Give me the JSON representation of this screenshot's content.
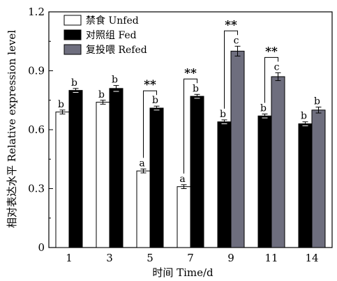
{
  "chart_data": {
    "type": "bar",
    "x_title": "时间 Time/d",
    "y_title": "相对表达水平 Relative expression level",
    "categories": [
      "1",
      "3",
      "5",
      "7",
      "9",
      "11",
      "14"
    ],
    "ylim": [
      0,
      1.2
    ],
    "yticks": [
      "0",
      "0.3",
      "0.6",
      "0.9",
      "1.2"
    ],
    "legend_position": "top-left",
    "series": [
      {
        "name": "禁食 Unfed",
        "color": "#ffffff",
        "values": [
          0.69,
          0.74,
          0.39,
          0.31,
          null,
          null,
          null
        ],
        "errors": [
          0.01,
          0.01,
          0.01,
          0.01,
          null,
          null,
          null
        ],
        "letters": [
          "b",
          "b",
          "a",
          "a",
          null,
          null,
          null
        ]
      },
      {
        "name": "对照组 Fed",
        "color": "#000000",
        "values": [
          0.8,
          0.81,
          0.71,
          0.77,
          0.64,
          0.67,
          0.63
        ],
        "errors": [
          0.01,
          0.015,
          0.01,
          0.01,
          0.01,
          0.01,
          0.01
        ],
        "letters": [
          "b",
          "b",
          "b",
          "b",
          "b",
          "b",
          "b"
        ]
      },
      {
        "name": "复投喂 Refed",
        "color": "#6e6e7e",
        "values": [
          null,
          null,
          null,
          null,
          1.0,
          0.87,
          0.7
        ],
        "errors": [
          null,
          null,
          null,
          null,
          0.025,
          0.02,
          0.015
        ],
        "letters": [
          null,
          null,
          null,
          null,
          "c",
          "c",
          "b"
        ]
      }
    ],
    "significance": [
      {
        "category": "5",
        "label": "**"
      },
      {
        "category": "7",
        "label": "**"
      },
      {
        "category": "9",
        "label": "**"
      },
      {
        "category": "11",
        "label": "**"
      }
    ]
  }
}
